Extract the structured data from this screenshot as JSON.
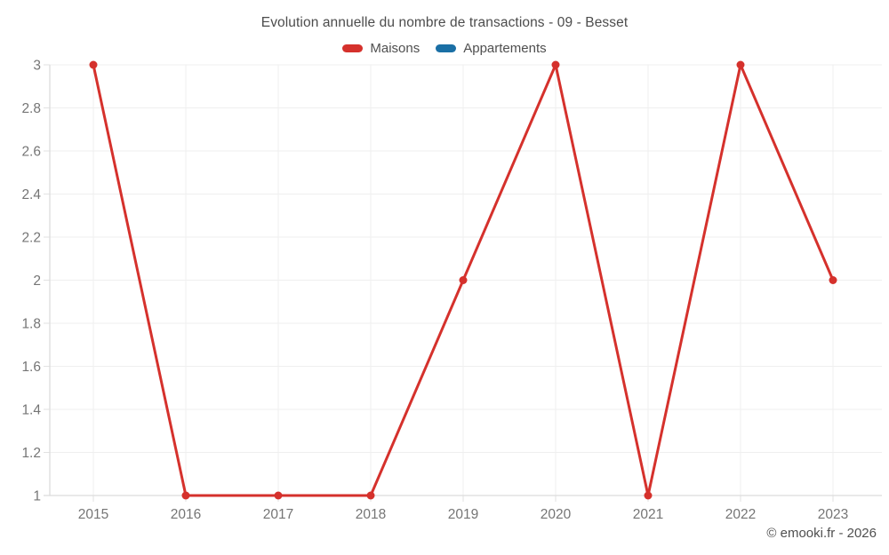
{
  "title": "Evolution annuelle du nombre de transactions - 09 - Besset",
  "footer": "© emooki.fr - 2026",
  "chart_data": {
    "type": "line",
    "title": "Evolution annuelle du nombre de transactions - 09 - Besset",
    "categories": [
      "2015",
      "2016",
      "2017",
      "2018",
      "2019",
      "2020",
      "2021",
      "2022",
      "2023"
    ],
    "series": [
      {
        "name": "Maisons",
        "color": "#d5312c",
        "values": [
          3,
          1,
          1,
          1,
          2,
          3,
          1,
          3,
          2
        ]
      },
      {
        "name": "Appartements",
        "color": "#1a6fa5",
        "values": []
      }
    ],
    "xlabel": "",
    "ylabel": "",
    "ylim": [
      1,
      3
    ],
    "ytick_step": 0.2,
    "grid": true,
    "legend_position": "top",
    "colors": {
      "gridline": "#efefef",
      "axis_line": "#dcdcdc",
      "tick": "#e2e2e2",
      "axis_label": "#757575"
    }
  }
}
